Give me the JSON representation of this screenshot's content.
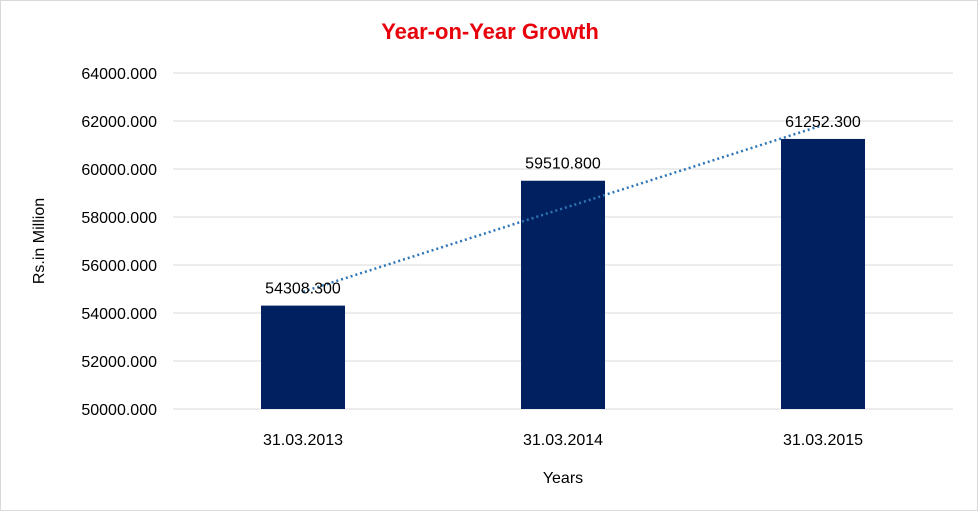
{
  "chart_data": {
    "type": "bar",
    "title": "Year-on-Year Growth",
    "xlabel": "Years",
    "ylabel": "Rs.in Million",
    "categories": [
      "31.03.2013",
      "31.03.2014",
      "31.03.2015"
    ],
    "values": [
      54308.3,
      59510.8,
      61252.3
    ],
    "value_labels": [
      "54308.300",
      "59510.800",
      "61252.300"
    ],
    "ylim": [
      50000,
      64000
    ],
    "yticks": [
      50000,
      52000,
      54000,
      56000,
      58000,
      60000,
      62000,
      64000
    ],
    "ytick_labels": [
      "50000.000",
      "52000.000",
      "54000.000",
      "56000.000",
      "58000.000",
      "60000.000",
      "62000.000",
      "64000.000"
    ],
    "trendline": {
      "type": "linear",
      "style": "dotted",
      "color": "#2e75b6"
    },
    "grid": true,
    "legend": "none",
    "bar_color": "#002060",
    "title_color": "#e8000b"
  }
}
